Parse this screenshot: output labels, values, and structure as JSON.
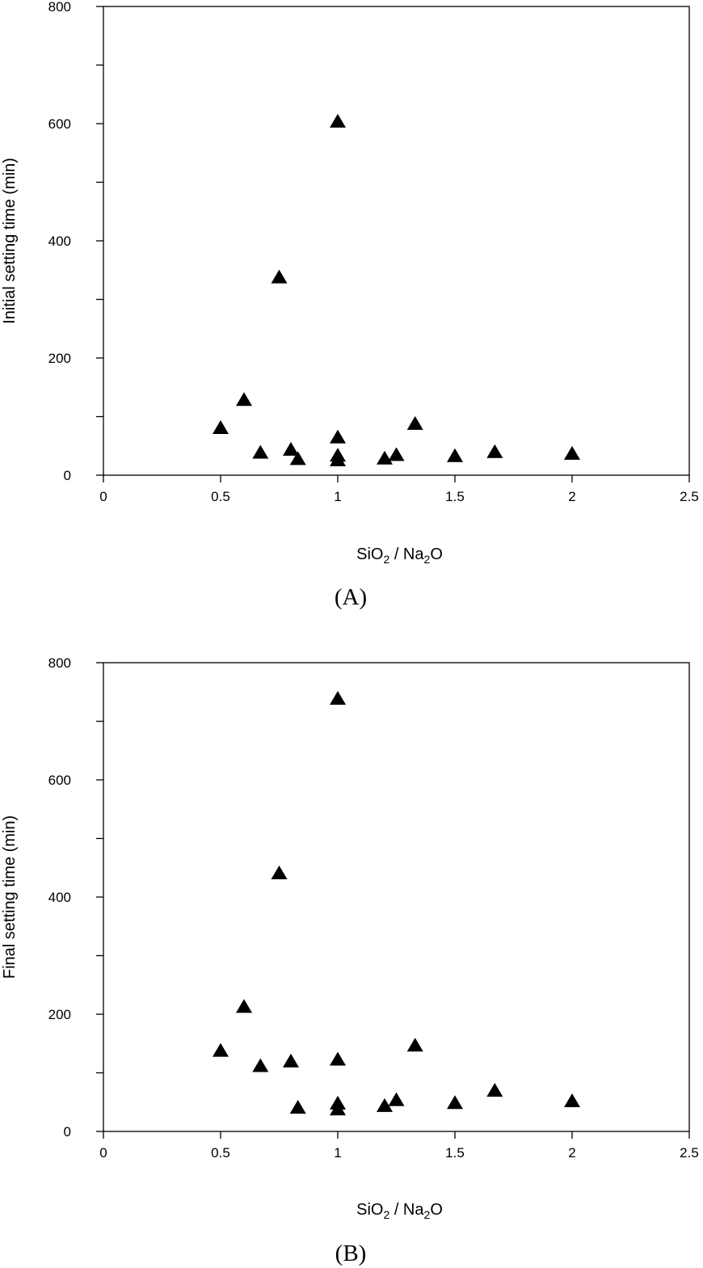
{
  "chart_data": [
    {
      "type": "scatter",
      "panel_label": "(A)",
      "xlabel": {
        "main": "SiO",
        "sub1": "2",
        "mid": " / Na",
        "sub2": "2",
        "tail": "O"
      },
      "ylabel": "Initial setting time (min)",
      "xlim": [
        0,
        2.5
      ],
      "ylim": [
        0,
        800
      ],
      "x_ticks": [
        0,
        0.5,
        1,
        1.5,
        2,
        2.5
      ],
      "x_tick_labels": [
        "0",
        "0.5",
        "1",
        "1.5",
        "2",
        "2.5"
      ],
      "y_ticks": [
        0,
        200,
        400,
        600,
        800
      ],
      "y_tick_labels": [
        "0",
        "200",
        "400",
        "600",
        "800"
      ],
      "y_minor_ticks": [
        100,
        300,
        500,
        700
      ],
      "grid": false,
      "marker": "filled-triangle",
      "points": [
        {
          "x": 0.5,
          "y": 80
        },
        {
          "x": 0.6,
          "y": 128
        },
        {
          "x": 0.67,
          "y": 38
        },
        {
          "x": 0.75,
          "y": 337
        },
        {
          "x": 0.8,
          "y": 43
        },
        {
          "x": 0.83,
          "y": 27
        },
        {
          "x": 1.0,
          "y": 603
        },
        {
          "x": 1.0,
          "y": 64
        },
        {
          "x": 1.0,
          "y": 33
        },
        {
          "x": 1.0,
          "y": 25
        },
        {
          "x": 1.2,
          "y": 28
        },
        {
          "x": 1.25,
          "y": 34
        },
        {
          "x": 1.33,
          "y": 87
        },
        {
          "x": 1.5,
          "y": 32
        },
        {
          "x": 1.67,
          "y": 39
        },
        {
          "x": 2.0,
          "y": 36
        }
      ]
    },
    {
      "type": "scatter",
      "panel_label": "(B)",
      "xlabel": {
        "main": "SiO",
        "sub1": "2",
        "mid": " / Na",
        "sub2": "2",
        "tail": "O"
      },
      "ylabel": "Final setting time (min)",
      "xlim": [
        0,
        2.5
      ],
      "ylim": [
        0,
        800
      ],
      "x_ticks": [
        0,
        0.5,
        1,
        1.5,
        2,
        2.5
      ],
      "x_tick_labels": [
        "0",
        "0.5",
        "1",
        "1.5",
        "2",
        "2.5"
      ],
      "y_ticks": [
        0,
        200,
        400,
        600,
        800
      ],
      "y_tick_labels": [
        "0",
        "200",
        "400",
        "600",
        "800"
      ],
      "y_minor_ticks": [
        100,
        300,
        500,
        700
      ],
      "grid": false,
      "marker": "filled-triangle",
      "points": [
        {
          "x": 0.5,
          "y": 137
        },
        {
          "x": 0.6,
          "y": 212
        },
        {
          "x": 0.67,
          "y": 111
        },
        {
          "x": 0.75,
          "y": 440
        },
        {
          "x": 0.8,
          "y": 119
        },
        {
          "x": 0.83,
          "y": 40
        },
        {
          "x": 1.0,
          "y": 738
        },
        {
          "x": 1.0,
          "y": 122
        },
        {
          "x": 1.0,
          "y": 47
        },
        {
          "x": 1.0,
          "y": 37
        },
        {
          "x": 1.2,
          "y": 43
        },
        {
          "x": 1.25,
          "y": 53
        },
        {
          "x": 1.33,
          "y": 146
        },
        {
          "x": 1.5,
          "y": 48
        },
        {
          "x": 1.67,
          "y": 69
        },
        {
          "x": 2.0,
          "y": 51
        }
      ]
    }
  ]
}
